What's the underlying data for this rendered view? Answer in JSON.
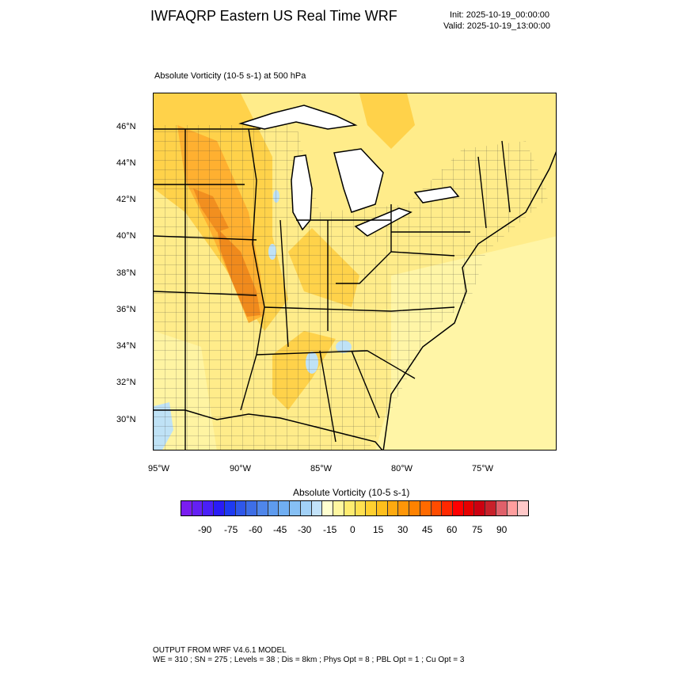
{
  "header": {
    "title": "IWFAQRP Eastern US Real Time WRF",
    "init": "Init: 2025-10-19_00:00:00",
    "valid": "Valid: 2025-10-19_13:00:00"
  },
  "field": {
    "label": "Absolute Vorticity   (10-5 s-1)     at   500 hPa"
  },
  "map": {
    "lat_labels": [
      "46°N",
      "44°N",
      "42°N",
      "40°N",
      "38°N",
      "36°N",
      "34°N",
      "32°N",
      "30°N"
    ],
    "lon_labels": [
      "95°W",
      "90°W",
      "85°W",
      "80°W",
      "75°W"
    ],
    "field_colors": {
      "background": "#ffec8a",
      "light": "#fff6a8",
      "moderate": "#ffd24a",
      "strong": "#ffb030",
      "max": "#f08a1c",
      "negative": "#bfe2f6",
      "water": "#ffffff"
    }
  },
  "colorbar": {
    "title": "Absolute Vorticity  (10-5 s-1)",
    "labels": [
      "-90",
      "-75",
      "-60",
      "-45",
      "-30",
      "-15",
      "0",
      "15",
      "30",
      "45",
      "60",
      "75",
      "90"
    ],
    "colors": [
      "#7a1df0",
      "#6420f4",
      "#4a1ff8",
      "#2a1cf6",
      "#1e3af2",
      "#2f57ea",
      "#3e6ee6",
      "#4f86ea",
      "#5e9bee",
      "#70aef2",
      "#86c0f5",
      "#a2d1f7",
      "#c2e2f9",
      "#ffffd0",
      "#fff7a0",
      "#ffec70",
      "#ffe050",
      "#ffd030",
      "#ffbf1c",
      "#ffaa10",
      "#ff9608",
      "#ff8200",
      "#ff6a00",
      "#ff4c00",
      "#ff2800",
      "#ff0000",
      "#e60000",
      "#cc0010",
      "#c8202a",
      "#e0606a",
      "#ff9e9e",
      "#ffc8c8"
    ]
  },
  "footer": {
    "line1": "OUTPUT FROM WRF V4.6.1 MODEL",
    "line2": "WE = 310 ; SN = 275 ; Levels = 38 ; Dis = 8km ; Phys Opt = 8 ; PBL Opt = 1 ; Cu Opt = 3"
  }
}
